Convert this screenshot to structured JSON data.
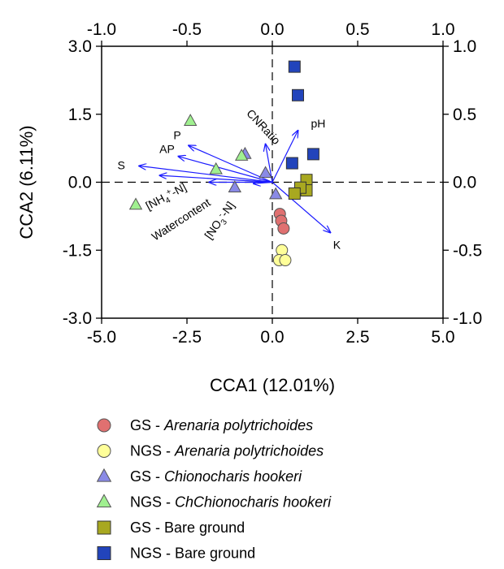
{
  "chart_data": {
    "type": "scatter",
    "title": "",
    "xlabel": "CCA1 (12.01%)",
    "ylabel": "CCA2 (6.11%)",
    "xlim": [
      -5.0,
      5.0
    ],
    "ylim": [
      -3.0,
      3.0
    ],
    "x_ticks": [
      "-5.0",
      "-2.5",
      "0.0",
      "2.5",
      "5.0"
    ],
    "y_ticks": [
      "3.0",
      "1.5",
      "0.0",
      "-1.5",
      "-3.0"
    ],
    "top_xlim": [
      -1.0,
      1.0
    ],
    "top_ticks": [
      "-1.0",
      "-0.5",
      "0.0",
      "0.5",
      "1.0"
    ],
    "right_ylim": [
      -1.0,
      1.0
    ],
    "right_ticks": [
      "1.0",
      "0.5",
      "0.0",
      "-0.5",
      "-1.0"
    ],
    "reference_lines": "dashed at x=0 and y=0",
    "arrow_color": "#1a1aff",
    "arrows": [
      {
        "label": "CNRatio",
        "x": -0.04,
        "y": 0.28
      },
      {
        "label": "pH",
        "x": 0.15,
        "y": 0.38
      },
      {
        "label": "P",
        "x": -0.49,
        "y": 0.27
      },
      {
        "label": "AP",
        "x": -0.55,
        "y": 0.19
      },
      {
        "label": "S",
        "x": -0.78,
        "y": 0.12
      },
      {
        "label": "[NH4+-N]",
        "x": -0.66,
        "y": 0.05
      },
      {
        "label": "Watercontent",
        "x": -0.37,
        "y": 0.0
      },
      {
        "label": "[NO3--N]",
        "x": -0.11,
        "y": -0.01
      },
      {
        "label": "K",
        "x": 0.34,
        "y": -0.37
      }
    ],
    "series": [
      {
        "name": "GS - Arenaria polytrichoides",
        "marker": "circle",
        "color": "#e07070",
        "points": [
          [
            0.22,
            -0.7
          ],
          [
            0.26,
            -0.85
          ],
          [
            0.33,
            -1.02
          ]
        ]
      },
      {
        "name": "NGS - Arenaria polytrichoides",
        "marker": "circle",
        "color": "#ffff99",
        "points": [
          [
            0.28,
            -1.5
          ],
          [
            0.2,
            -1.72
          ],
          [
            0.38,
            -1.72
          ]
        ]
      },
      {
        "name": "GS - Chionocharis hookeri",
        "marker": "triangle",
        "color": "#8a8ae6",
        "points": [
          [
            -0.8,
            0.62
          ],
          [
            -0.2,
            0.2
          ],
          [
            -1.1,
            -0.12
          ],
          [
            0.1,
            -0.27
          ]
        ]
      },
      {
        "name": "NGS - ChChionocharis hookeri",
        "marker": "triangle",
        "color": "#a0f090",
        "points": [
          [
            -2.4,
            1.35
          ],
          [
            -1.65,
            0.28
          ],
          [
            -0.9,
            0.58
          ],
          [
            -4.0,
            -0.5
          ]
        ]
      },
      {
        "name": "GS - Bare ground",
        "marker": "square",
        "color": "#a8a820",
        "points": [
          [
            1.0,
            0.05
          ],
          [
            1.0,
            -0.18
          ],
          [
            0.82,
            -0.12
          ],
          [
            0.65,
            -0.25
          ]
        ]
      },
      {
        "name": "NGS - Bare ground",
        "marker": "square",
        "color": "#2244bb",
        "points": [
          [
            0.65,
            2.55
          ],
          [
            0.75,
            1.92
          ],
          [
            1.2,
            0.62
          ],
          [
            0.58,
            0.42
          ]
        ]
      }
    ],
    "legend": {
      "position": "below"
    }
  },
  "legend_items": [
    {
      "prefix": "GS - ",
      "species": "Arenaria polytrichoides"
    },
    {
      "prefix": "NGS - ",
      "species": "Arenaria polytrichoides"
    },
    {
      "prefix": "GS - ",
      "species": "Chionocharis hookeri"
    },
    {
      "prefix": "NGS - ",
      "species": "ChChionocharis hookeri"
    },
    {
      "prefix": "GS - ",
      "species": "Bare ground"
    },
    {
      "prefix": "NGS - ",
      "species": "Bare ground"
    }
  ]
}
